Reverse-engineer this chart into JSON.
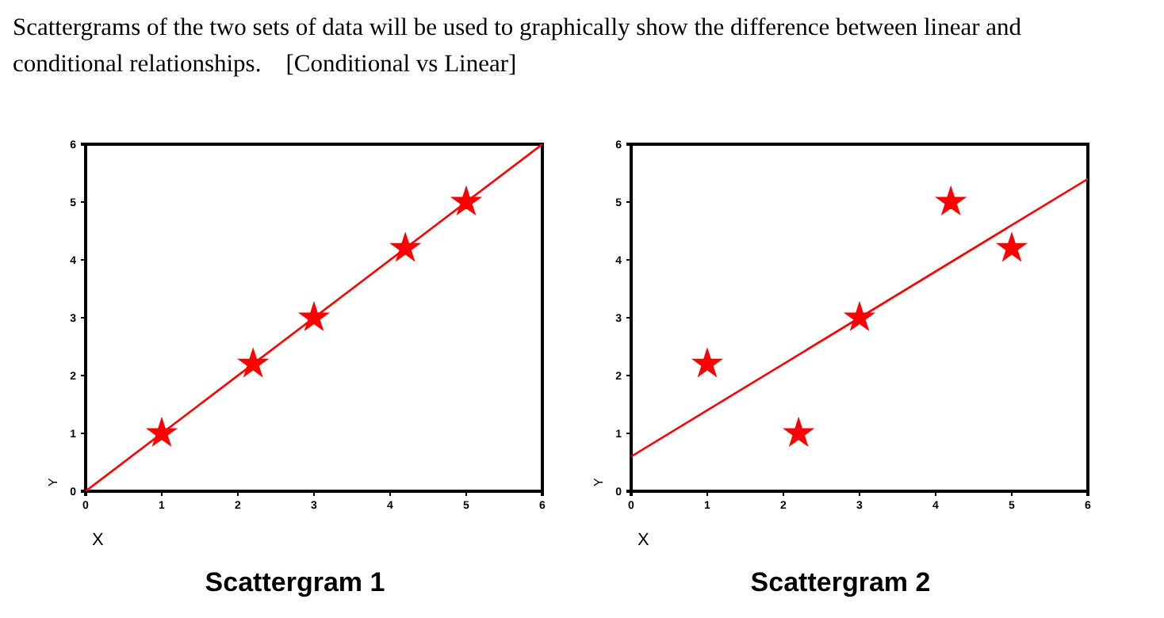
{
  "chart_data": [
    {
      "type": "scatter",
      "title": "Scattergram 1",
      "xlabel": "X",
      "ylabel": "Y",
      "xlim": [
        0,
        6
      ],
      "ylim": [
        0,
        6
      ],
      "xticks": [
        0,
        1,
        2,
        3,
        4,
        5,
        6
      ],
      "yticks": [
        0,
        1,
        2,
        3,
        4,
        5,
        6
      ],
      "marker": "star",
      "annotations": [
        "Scattergrams of the two sets of data will be used to graphically show the difference between linear and conditional relationships.    [Conditional vs Linear]"
      ],
      "series": [
        {
          "color": "#ff0000",
          "x": [
            1,
            2.2,
            3,
            4.2,
            5
          ],
          "values": [
            1,
            2.2,
            3,
            4.2,
            5
          ]
        },
        {
          "type": "line",
          "color": "#ff0000",
          "marker": "none",
          "x": [
            0,
            6
          ],
          "values": [
            0,
            6
          ]
        }
      ]
    },
    {
      "type": "scatter",
      "title": "Scattergram 2",
      "xlabel": "X",
      "ylabel": "Y",
      "xlim": [
        0,
        6
      ],
      "ylim": [
        0,
        6
      ],
      "xticks": [
        0,
        1,
        2,
        3,
        4,
        5,
        6
      ],
      "yticks": [
        0,
        1,
        2,
        3,
        4,
        5,
        6
      ],
      "marker": "star",
      "series": [
        {
          "color": "#ff0000",
          "x": [
            1,
            2.2,
            3,
            4.2,
            5
          ],
          "values": [
            2.2,
            1,
            3,
            5,
            4.2
          ]
        },
        {
          "type": "line",
          "color": "#ff0000",
          "marker": "none",
          "x": [
            0,
            6
          ],
          "values": [
            0.6,
            5.4
          ]
        }
      ]
    }
  ]
}
